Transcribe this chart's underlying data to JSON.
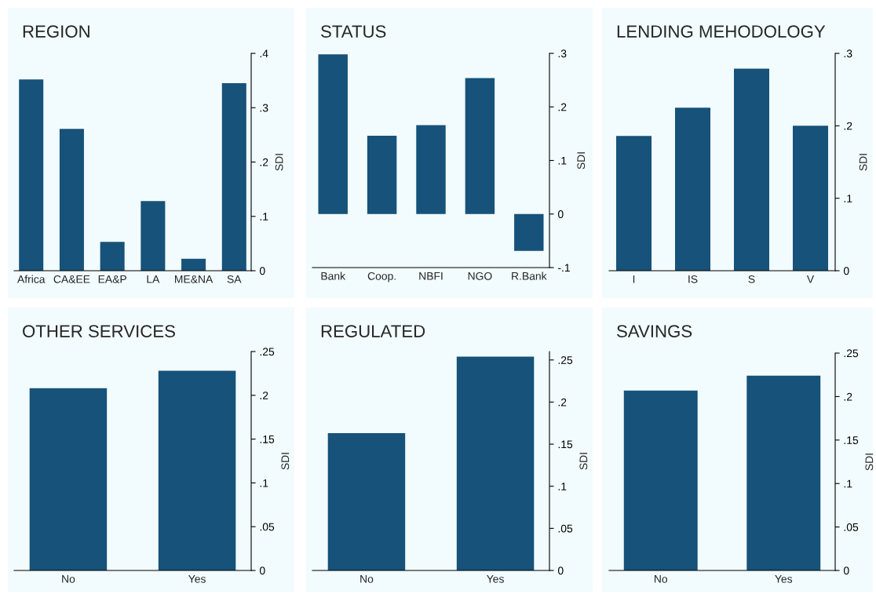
{
  "chart_data": [
    {
      "type": "bar",
      "title": "REGION",
      "ylabel": "SDI",
      "categories": [
        "Africa",
        "CA&EE",
        "EA&P",
        "LA",
        "ME&NA",
        "SA"
      ],
      "color": "#165279",
      "values": [
        0.352,
        0.261,
        0.053,
        0.128,
        0.022,
        0.345
      ],
      "ylim": [
        0,
        0.4
      ],
      "yticks": [
        {
          "value": 0,
          "label": "0"
        },
        {
          "value": 0.1,
          "label": ".1"
        },
        {
          "value": 0.2,
          "label": ".2"
        },
        {
          "value": 0.3,
          "label": ".3"
        },
        {
          "value": 0.4,
          "label": ".4"
        }
      ],
      "grid": false,
      "legend": false
    },
    {
      "type": "bar",
      "title": "STATUS",
      "ylabel": "SDI",
      "categories": [
        "Bank",
        "Coop.",
        "NBFI",
        "NGO",
        "R.Bank"
      ],
      "color": "#165279",
      "values": [
        0.298,
        0.146,
        0.166,
        0.254,
        -0.069
      ],
      "ylim": [
        -0.1,
        0.3
      ],
      "yticks": [
        {
          "value": -0.1,
          "label": "-.1"
        },
        {
          "value": 0,
          "label": "0"
        },
        {
          "value": 0.1,
          "label": ".1"
        },
        {
          "value": 0.2,
          "label": ".2"
        },
        {
          "value": 0.3,
          "label": ".3"
        }
      ],
      "grid": false,
      "legend": false
    },
    {
      "type": "bar",
      "title": "LENDING MEHODOLOGY",
      "ylabel": "SDI",
      "categories": [
        "I",
        "IS",
        "S",
        "V"
      ],
      "color": "#165279",
      "values": [
        0.186,
        0.225,
        0.279,
        0.2
      ],
      "ylim": [
        0,
        0.3
      ],
      "yticks": [
        {
          "value": 0,
          "label": "0"
        },
        {
          "value": 0.1,
          "label": ".1"
        },
        {
          "value": 0.2,
          "label": ".2"
        },
        {
          "value": 0.3,
          "label": ".3"
        }
      ],
      "grid": false,
      "legend": false
    },
    {
      "type": "bar",
      "title": "OTHER SERVICES",
      "ylabel": "SDI",
      "categories": [
        "No",
        "Yes"
      ],
      "color": "#165279",
      "values": [
        0.208,
        0.228
      ],
      "ylim": [
        0,
        0.25
      ],
      "yticks": [
        {
          "value": 0,
          "label": "0"
        },
        {
          "value": 0.05,
          "label": ".05"
        },
        {
          "value": 0.1,
          "label": ".1"
        },
        {
          "value": 0.15,
          "label": ".15"
        },
        {
          "value": 0.2,
          "label": ".2"
        },
        {
          "value": 0.25,
          "label": ".25"
        }
      ],
      "grid": false,
      "legend": false
    },
    {
      "type": "bar",
      "title": "REGULATED",
      "ylabel": "SDI",
      "categories": [
        "No",
        "Yes"
      ],
      "color": "#165279",
      "values": [
        0.163,
        0.254
      ],
      "ylim": [
        0,
        0.26
      ],
      "yticks": [
        {
          "value": 0,
          "label": "0"
        },
        {
          "value": 0.05,
          "label": ".05"
        },
        {
          "value": 0.1,
          "label": ".1"
        },
        {
          "value": 0.15,
          "label": ".15"
        },
        {
          "value": 0.2,
          "label": ".2"
        },
        {
          "value": 0.25,
          "label": ".25"
        }
      ],
      "grid": false,
      "legend": false
    },
    {
      "type": "bar",
      "title": "SAVINGS",
      "ylabel": "SDI",
      "categories": [
        "No",
        "Yes"
      ],
      "color": "#165279",
      "values": [
        0.207,
        0.224
      ],
      "ylim": [
        0,
        0.25
      ],
      "yticks": [
        {
          "value": 0,
          "label": "0"
        },
        {
          "value": 0.05,
          "label": ".05"
        },
        {
          "value": 0.1,
          "label": ".1"
        },
        {
          "value": 0.15,
          "label": ".15"
        },
        {
          "value": 0.2,
          "label": ".2"
        },
        {
          "value": 0.25,
          "label": ".25"
        }
      ],
      "grid": false,
      "legend": false
    }
  ]
}
